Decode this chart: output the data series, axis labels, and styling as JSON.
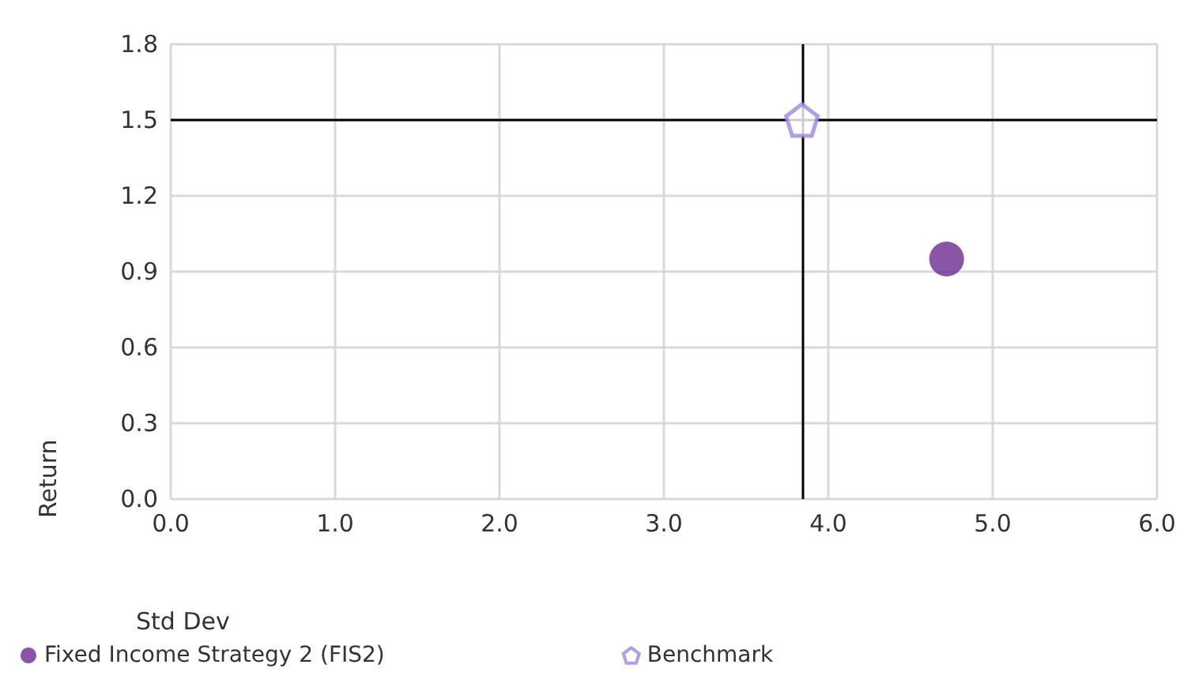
{
  "chart_data": {
    "type": "scatter",
    "xlabel": "Std Dev",
    "ylabel": "Return",
    "xlim": [
      0,
      6
    ],
    "xticks": [
      {
        "value": 0,
        "label": "0.0"
      },
      {
        "value": 1,
        "label": "1.0"
      },
      {
        "value": 2,
        "label": "2.0"
      },
      {
        "value": 3,
        "label": "3.0"
      },
      {
        "value": 4,
        "label": "4.0"
      },
      {
        "value": 5,
        "label": "5.0"
      },
      {
        "value": 6,
        "label": "6.0"
      }
    ],
    "ylim": [
      0,
      1.8
    ],
    "yticks": [
      {
        "value": 0,
        "label": "0.0"
      },
      0.3,
      0.6,
      0.9,
      1.2,
      1.5,
      1.8
    ],
    "series": [
      {
        "name": "Fixed Income Strategy 2 (FIS2)",
        "color": "#6b2c91",
        "x": [
          4.72
        ],
        "values": [
          0.95
        ],
        "marker": "circle"
      },
      {
        "name": "Benchmark",
        "color": "#9d84ea",
        "x": [
          3.84
        ],
        "values": [
          1.5
        ]
      }
    ],
    "ref_lines": [
      {
        "axis": "x",
        "value": 3.84,
        "color": "#000000"
      },
      {
        "axis": "y",
        "value": 1.5,
        "color": "#000000"
      }
    ],
    "grid": true,
    "legend": "bottom left"
  }
}
